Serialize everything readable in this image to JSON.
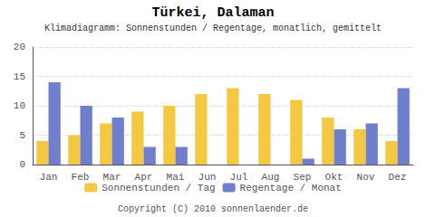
{
  "chart_data": {
    "type": "bar",
    "title": "Türkei, Dalaman",
    "subtitle": "Klimadiagramm: Sonnenstunden / Regentage, monatlich, gemittelt",
    "categories": [
      "Jan",
      "Feb",
      "Mar",
      "Apr",
      "Mai",
      "Jun",
      "Jul",
      "Aug",
      "Sep",
      "Okt",
      "Nov",
      "Dez"
    ],
    "series": [
      {
        "name": "Sonnenstunden / Tag",
        "color": "#F5C842",
        "values": [
          4,
          5,
          7,
          9,
          10,
          12,
          13,
          12,
          11,
          8,
          6,
          4
        ]
      },
      {
        "name": "Regentage / Monat",
        "color": "#6F7FCC",
        "values": [
          14,
          10,
          8,
          3,
          3,
          0,
          0,
          0,
          1,
          6,
          7,
          13
        ]
      }
    ],
    "ylim": [
      0,
      20
    ],
    "yticks": [
      0,
      5,
      10,
      15,
      20
    ],
    "grid": true,
    "legend": "bottom",
    "annotations": [
      "Copyright (C) 2010 sonnenlaender.de"
    ]
  }
}
